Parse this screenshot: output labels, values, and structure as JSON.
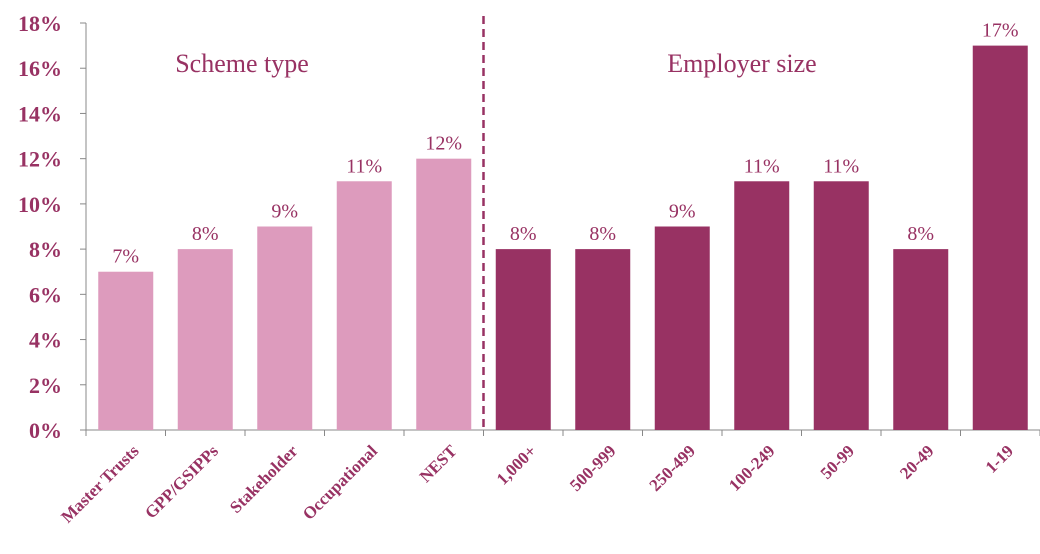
{
  "chart_data": {
    "type": "bar",
    "categories": [
      "Master Trusts",
      "GPP/GSIPPs",
      "Stakeholder",
      "Occupational",
      "NEST",
      "1,000+",
      "500-999",
      "250-499",
      "100-249",
      "50-99",
      "20-49",
      "1-19"
    ],
    "values": [
      7,
      8,
      9,
      11,
      12,
      8,
      8,
      9,
      11,
      11,
      8,
      17
    ],
    "data_labels": [
      "7%",
      "8%",
      "9%",
      "11%",
      "12%",
      "8%",
      "8%",
      "9%",
      "11%",
      "11%",
      "8%",
      "17%"
    ],
    "groups": [
      {
        "label": "Scheme type",
        "start": 0,
        "end": 4,
        "color": "#dd9bbd"
      },
      {
        "label": "Employer size",
        "start": 5,
        "end": 11,
        "color": "#983263"
      }
    ],
    "ylim": [
      0,
      18
    ],
    "yticks": [
      0,
      2,
      4,
      6,
      8,
      10,
      12,
      14,
      16,
      18
    ],
    "ytick_labels": [
      "0%",
      "2%",
      "4%",
      "6%",
      "8%",
      "10%",
      "12%",
      "14%",
      "16%",
      "18%"
    ],
    "xlabel": "",
    "ylabel": "",
    "grid": false,
    "legend": "none",
    "divider": "dashed vertical line between NEST and 1,000+",
    "colors": {
      "axis_text": "#983263",
      "data_label": "#983263",
      "axis_line": "#888888"
    }
  }
}
